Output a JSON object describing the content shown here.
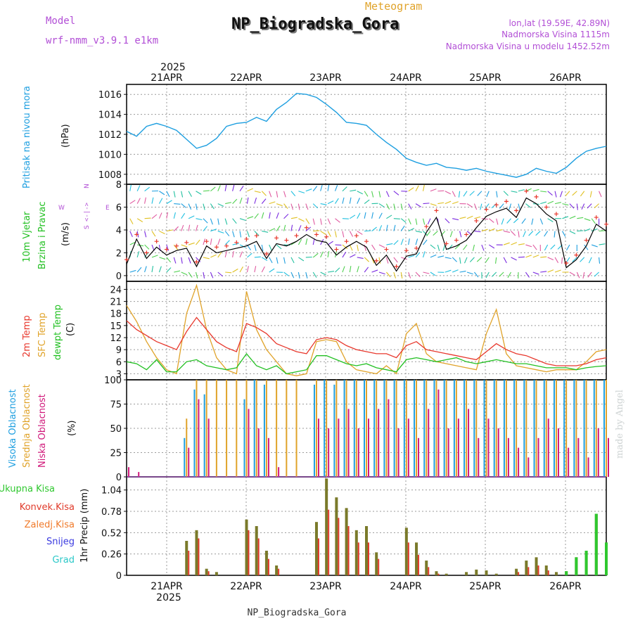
{
  "header": {
    "model_label": "Model",
    "model_name": "wrf-nmm_v3.9.1 e1km",
    "meteogram_label": "Meteogram",
    "station": "NP_Biogradska_Gora",
    "lonlat": "lon,lat (19.59E, 42.89N)",
    "altitude": "Nadmorska Visina 1115m",
    "model_altitude": "Nadmorska Visina u modelu 1452.52m",
    "credit": "made by Angel",
    "footer_station": "NP_Biogradska_Gora"
  },
  "time_axis": {
    "year": "2025",
    "days": [
      "21APR",
      "22APR",
      "23APR",
      "24APR",
      "25APR",
      "26APR"
    ]
  },
  "colors": {
    "pressure": "#1e9fe0",
    "wind_speed": "#000000",
    "wind_gust": "#e8382d",
    "temp_2m": "#e8382d",
    "temp_sfc": "#e0a32a",
    "dewpoint": "#22c022",
    "cloud_high": "#1e9fe0",
    "cloud_mid": "#e0a32a",
    "cloud_low": "#d0187a",
    "precip_total": "#2fc82f",
    "precip_conv": "#e03a2a",
    "precip_frozen": "#f07a2a",
    "precip_snow": "#3a3ae0",
    "precip_hail": "#2ac8c8"
  },
  "chart_data": [
    {
      "type": "line",
      "panel": "pressure",
      "ylabel": "Pritisak na nivou mora",
      "unit": "(hPa)",
      "yticks": [
        "1008",
        "1010",
        "1012",
        "1014",
        "1016"
      ],
      "ylim": [
        1007,
        1017
      ],
      "x_hours": [
        0,
        3,
        6,
        9,
        12,
        15,
        18,
        21,
        24,
        27,
        30,
        33,
        36,
        39,
        42,
        45,
        48,
        51,
        54,
        57,
        60,
        63,
        66,
        69,
        72,
        75,
        78,
        81,
        84,
        87,
        90,
        93,
        96,
        99,
        102,
        105,
        108,
        111,
        114,
        117,
        120,
        123,
        126,
        129,
        132,
        135,
        138,
        141,
        144
      ],
      "series": [
        {
          "values": [
            1012.3,
            1011.8,
            1012.8,
            1013.1,
            1012.8,
            1012.4,
            1011.5,
            1010.6,
            1010.9,
            1011.6,
            1012.8,
            1013.1,
            1013.2,
            1013.7,
            1013.3,
            1014.5,
            1015.2,
            1016.1,
            1016.0,
            1015.7,
            1015.0,
            1014.2,
            1013.2,
            1013.1,
            1012.9,
            1012.0,
            1011.2,
            1010.5,
            1009.6,
            1009.2,
            1008.9,
            1009.1,
            1008.7,
            1008.6,
            1008.4,
            1008.6,
            1008.3,
            1008.1,
            1007.9,
            1007.7,
            1008.0,
            1008.6,
            1008.3,
            1008.1,
            1008.7,
            1009.6,
            1010.3,
            1010.6,
            1010.8
          ]
        }
      ]
    },
    {
      "type": "line",
      "panel": "wind",
      "ylabel": [
        "10m Vjetar",
        "Brzina i Pravac"
      ],
      "unit": "(m/s)",
      "compass": {
        "n": "N",
        "s": "S",
        "e": "E",
        "w": "W"
      },
      "yticks": [
        "0",
        "2",
        "4",
        "6",
        "8"
      ],
      "ylim": [
        -0.5,
        8
      ],
      "x_hours": [
        0,
        3,
        6,
        9,
        12,
        15,
        18,
        21,
        24,
        27,
        30,
        33,
        36,
        39,
        42,
        45,
        48,
        51,
        54,
        57,
        60,
        63,
        66,
        69,
        72,
        75,
        78,
        81,
        84,
        87,
        90,
        93,
        96,
        99,
        102,
        105,
        108,
        111,
        114,
        117,
        120,
        123,
        126,
        129,
        132,
        135,
        138,
        141,
        144
      ],
      "series": [
        {
          "values": [
            1.0,
            3.2,
            1.5,
            2.5,
            1.8,
            2.2,
            2.4,
            0.8,
            2.6,
            2.0,
            2.2,
            2.4,
            2.6,
            3.0,
            1.5,
            2.8,
            2.6,
            3.0,
            3.6,
            3.1,
            2.9,
            1.8,
            2.5,
            3.0,
            2.5,
            0.9,
            1.8,
            0.4,
            1.7,
            1.9,
            3.8,
            5.1,
            2.3,
            2.6,
            3.1,
            4.2,
            5.2,
            5.6,
            5.9,
            5.1,
            6.8,
            6.3,
            5.4,
            4.8,
            0.7,
            1.4,
            2.6,
            4.5,
            3.9
          ]
        },
        {
          "values": [
            1.4,
            3.6,
            2.0,
            3.0,
            2.3,
            2.6,
            2.9,
            1.2,
            3.0,
            2.5,
            2.6,
            2.9,
            3.2,
            3.5,
            1.9,
            3.3,
            3.1,
            3.5,
            4.2,
            3.6,
            3.4,
            2.3,
            3.0,
            3.5,
            3.0,
            1.3,
            2.3,
            0.8,
            2.2,
            2.4,
            4.3,
            5.7,
            2.8,
            3.1,
            3.6,
            4.8,
            5.8,
            6.2,
            6.5,
            5.7,
            7.4,
            6.9,
            6.0,
            5.4,
            1.1,
            1.8,
            3.1,
            5.1,
            4.5
          ]
        }
      ]
    },
    {
      "type": "line",
      "panel": "temperature",
      "ylabel": [
        "2m Temp",
        "SFC Temp",
        "dewpt Temp"
      ],
      "unit": "(C)",
      "yticks": [
        "3",
        "6",
        "9",
        "12",
        "15",
        "18",
        "21",
        "24"
      ],
      "ylim": [
        1.5,
        26
      ],
      "x_hours": [
        0,
        3,
        6,
        9,
        12,
        15,
        18,
        21,
        24,
        27,
        30,
        33,
        36,
        39,
        42,
        45,
        48,
        51,
        54,
        57,
        60,
        63,
        66,
        69,
        72,
        75,
        78,
        81,
        84,
        87,
        90,
        93,
        96,
        99,
        102,
        105,
        108,
        111,
        114,
        117,
        120,
        123,
        126,
        129,
        132,
        135,
        138,
        141,
        144
      ],
      "series": [
        {
          "values": [
            16.2,
            14.0,
            12.5,
            11.0,
            10.0,
            9.0,
            13.5,
            17.0,
            14.0,
            11.0,
            9.5,
            8.5,
            15.5,
            14.5,
            13.0,
            10.5,
            9.5,
            8.5,
            8.0,
            11.5,
            12.0,
            11.5,
            10.0,
            9.0,
            8.5,
            8.0,
            8.0,
            7.0,
            10.0,
            11.0,
            9.0,
            8.5,
            8.0,
            7.5,
            7.0,
            6.5,
            8.5,
            10.5,
            9.0,
            8.0,
            7.5,
            6.5,
            5.5,
            5.0,
            5.0,
            5.0,
            5.5,
            6.5,
            7.0
          ]
        },
        {
          "values": [
            20.0,
            16.0,
            11.0,
            7.0,
            4.0,
            3.0,
            18.0,
            25.0,
            14.0,
            7.0,
            4.0,
            3.0,
            23.5,
            14.0,
            9.0,
            6.0,
            3.0,
            2.5,
            3.0,
            11.0,
            11.5,
            11.0,
            6.0,
            4.0,
            3.5,
            3.0,
            5.0,
            3.0,
            13.0,
            15.5,
            8.0,
            6.0,
            5.5,
            5.0,
            4.5,
            4.0,
            13.0,
            19.0,
            8.0,
            5.0,
            4.5,
            4.0,
            3.5,
            4.0,
            4.0,
            4.0,
            6.0,
            8.5,
            9.0
          ]
        },
        {
          "values": [
            6.0,
            5.5,
            4.0,
            6.5,
            3.5,
            3.5,
            6.0,
            6.5,
            5.0,
            4.5,
            4.0,
            4.5,
            8.0,
            5.0,
            4.0,
            5.0,
            3.0,
            3.5,
            4.0,
            7.5,
            7.5,
            6.5,
            5.5,
            5.0,
            5.5,
            4.5,
            4.0,
            3.5,
            6.5,
            7.0,
            6.5,
            6.0,
            6.5,
            7.0,
            6.0,
            5.5,
            6.0,
            6.5,
            6.0,
            5.5,
            5.5,
            5.0,
            4.5,
            4.5,
            4.5,
            4.0,
            4.5,
            4.8,
            5.0
          ]
        }
      ]
    },
    {
      "type": "bar",
      "panel": "clouds",
      "ylabel": [
        "Visoka Oblacnost",
        "Srednja Oblacnost",
        "Niska Oblacnost"
      ],
      "unit": "(%)",
      "yticks": [
        "0",
        "25",
        "50",
        "75",
        "100"
      ],
      "ylim": [
        0,
        100
      ],
      "x_hours": [
        0,
        3,
        6,
        9,
        12,
        15,
        18,
        21,
        24,
        27,
        30,
        33,
        36,
        39,
        42,
        45,
        48,
        51,
        54,
        57,
        60,
        63,
        66,
        69,
        72,
        75,
        78,
        81,
        84,
        87,
        90,
        93,
        96,
        99,
        102,
        105,
        108,
        111,
        114,
        117,
        120,
        123,
        126,
        129,
        132,
        135,
        138,
        141,
        144
      ],
      "series": [
        {
          "values": [
            0,
            0,
            0,
            0,
            0,
            0,
            40,
            90,
            85,
            0,
            0,
            0,
            80,
            100,
            95,
            0,
            0,
            0,
            0,
            95,
            100,
            95,
            100,
            100,
            100,
            100,
            100,
            100,
            100,
            100,
            100,
            100,
            100,
            100,
            100,
            100,
            100,
            100,
            100,
            100,
            100,
            100,
            100,
            100,
            100,
            100,
            100,
            100,
            100
          ]
        },
        {
          "values": [
            0,
            0,
            0,
            0,
            0,
            0,
            60,
            100,
            100,
            100,
            100,
            100,
            100,
            100,
            100,
            100,
            100,
            100,
            0,
            100,
            100,
            100,
            100,
            100,
            100,
            100,
            100,
            100,
            100,
            100,
            100,
            100,
            100,
            100,
            100,
            100,
            100,
            100,
            100,
            100,
            100,
            100,
            100,
            100,
            100,
            100,
            100,
            100,
            100
          ]
        },
        {
          "values": [
            10,
            5,
            0,
            0,
            0,
            0,
            30,
            80,
            60,
            0,
            0,
            0,
            70,
            50,
            40,
            10,
            0,
            0,
            0,
            60,
            50,
            60,
            70,
            50,
            60,
            70,
            80,
            50,
            60,
            40,
            70,
            90,
            50,
            60,
            70,
            40,
            60,
            50,
            40,
            30,
            20,
            40,
            60,
            50,
            30,
            40,
            20,
            50,
            40
          ]
        }
      ]
    },
    {
      "type": "bar",
      "panel": "precipitation",
      "legend": [
        "Ukupna Kisa",
        "Konvek.Kisa",
        "Zaledj.Kisa",
        "Snijeg",
        "Grad"
      ],
      "ylabel": "1hr Precip (mm)",
      "yticks": [
        "0",
        "0.26",
        "0.52",
        "0.78",
        "1.04"
      ],
      "ylim": [
        0,
        1.2
      ],
      "x_hours": [
        0,
        3,
        6,
        9,
        12,
        15,
        18,
        21,
        24,
        27,
        30,
        33,
        36,
        39,
        42,
        45,
        48,
        51,
        54,
        57,
        60,
        63,
        66,
        69,
        72,
        75,
        78,
        81,
        84,
        87,
        90,
        93,
        96,
        99,
        102,
        105,
        108,
        111,
        114,
        117,
        120,
        123,
        126,
        129,
        132,
        135,
        138,
        141,
        144
      ],
      "series": [
        {
          "values": [
            0,
            0,
            0,
            0,
            0,
            0,
            0.42,
            0.55,
            0.08,
            0.04,
            0,
            0,
            0.68,
            0.6,
            0.3,
            0.12,
            0,
            0,
            0,
            0.65,
            1.18,
            0.95,
            0.82,
            0.55,
            0.6,
            0.28,
            0,
            0,
            0.58,
            0.4,
            0.18,
            0.05,
            0.02,
            0,
            0.04,
            0.07,
            0.06,
            0.02,
            0,
            0.08,
            0.18,
            0.22,
            0.12,
            0.04,
            0.05,
            0.22,
            0.3,
            0.75,
            0.4
          ]
        },
        {
          "values": [
            0,
            0,
            0,
            0,
            0,
            0,
            0.3,
            0.45,
            0.05,
            0,
            0,
            0,
            0.55,
            0.45,
            0.2,
            0.08,
            0,
            0,
            0,
            0.45,
            0.8,
            0.7,
            0.6,
            0.4,
            0.4,
            0.2,
            0,
            0,
            0.4,
            0.25,
            0.1,
            0.02,
            0,
            0,
            0,
            0,
            0,
            0,
            0,
            0.04,
            0.1,
            0.12,
            0.06,
            0,
            0,
            0,
            0,
            0,
            0
          ]
        }
      ]
    }
  ]
}
